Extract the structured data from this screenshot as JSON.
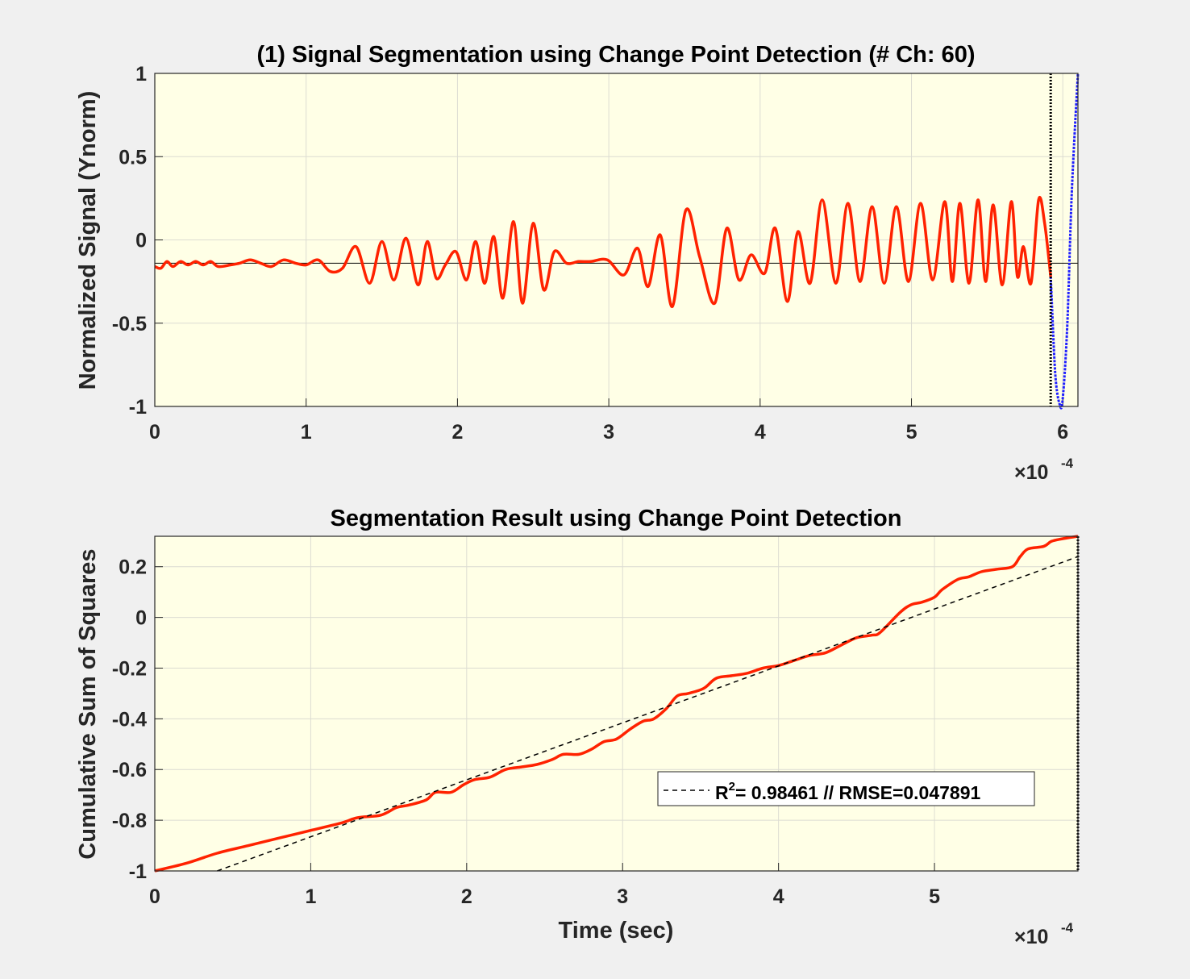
{
  "chart_data": [
    {
      "type": "line",
      "title": "(1) Signal Segmentation using Change Point Detection (# Ch: 60)",
      "xlabel": "",
      "ylabel": "Normalized Signal (Ynorm)",
      "x_exponent_label": "×10",
      "x_exponent": "-4",
      "xlim": [
        0,
        6.1
      ],
      "ylim": [
        -1,
        1
      ],
      "xticks": [
        0,
        1,
        2,
        3,
        4,
        5,
        6
      ],
      "xtick_labels": [
        "0",
        "1",
        "2",
        "3",
        "4",
        "5",
        "6"
      ],
      "yticks": [
        -1,
        -0.5,
        0,
        0.5,
        1
      ],
      "ytick_labels": [
        "-1",
        "-0.5",
        "0",
        "0.5",
        "1"
      ],
      "grid": true,
      "background": "#ffffe6",
      "mean_line": {
        "y": -0.14,
        "color": "#000000"
      },
      "change_point": {
        "x": 5.92,
        "color": "#000000",
        "style": "dotted"
      },
      "series": [
        {
          "color": "#ff2200",
          "x": [
            0.0,
            0.04,
            0.08,
            0.12,
            0.17,
            0.22,
            0.27,
            0.32,
            0.37,
            0.42,
            0.5,
            0.56,
            0.63,
            0.7,
            0.77,
            0.85,
            0.93,
            1.0,
            1.08,
            1.16,
            1.24,
            1.33,
            1.42,
            1.5,
            1.58,
            1.66,
            1.74,
            1.8,
            1.86,
            1.92,
            1.99,
            2.06,
            2.12,
            2.18,
            2.24,
            2.3,
            2.37,
            2.43,
            2.5,
            2.57,
            2.64,
            2.72,
            2.8,
            2.88,
            2.99,
            3.1,
            3.19,
            3.26,
            3.34,
            3.42,
            3.51,
            3.6,
            3.7,
            3.78,
            3.86,
            3.94,
            4.03,
            4.1,
            4.18,
            4.25,
            4.33,
            4.41,
            4.5,
            4.58,
            4.66,
            4.74,
            4.82,
            4.9,
            4.98,
            5.06,
            5.14,
            5.22,
            5.27,
            5.32,
            5.38,
            5.44,
            5.49,
            5.54,
            5.6,
            5.66,
            5.7,
            5.74,
            5.79,
            5.84,
            5.88,
            5.92
          ],
          "y": [
            -0.16,
            -0.17,
            -0.13,
            -0.16,
            -0.13,
            -0.15,
            -0.13,
            -0.15,
            -0.13,
            -0.16,
            -0.15,
            -0.14,
            -0.12,
            -0.14,
            -0.16,
            -0.12,
            -0.14,
            -0.15,
            -0.12,
            -0.19,
            -0.17,
            -0.04,
            -0.26,
            -0.01,
            -0.24,
            0.01,
            -0.27,
            -0.01,
            -0.23,
            -0.15,
            -0.07,
            -0.24,
            -0.01,
            -0.26,
            0.02,
            -0.35,
            0.11,
            -0.38,
            0.1,
            -0.3,
            -0.07,
            -0.14,
            -0.13,
            -0.13,
            -0.12,
            -0.21,
            -0.05,
            -0.28,
            0.03,
            -0.4,
            0.18,
            -0.1,
            -0.38,
            0.07,
            -0.24,
            -0.09,
            -0.2,
            0.07,
            -0.37,
            0.05,
            -0.26,
            0.24,
            -0.26,
            0.22,
            -0.25,
            0.2,
            -0.26,
            0.2,
            -0.25,
            0.22,
            -0.24,
            0.23,
            -0.25,
            0.22,
            -0.26,
            0.24,
            -0.25,
            0.21,
            -0.27,
            0.23,
            -0.22,
            -0.04,
            -0.26,
            0.24,
            0.1,
            -0.22
          ]
        },
        {
          "color": "#1f1fff",
          "x": [
            5.92,
            5.95,
            5.98,
            6.0,
            6.03,
            6.06,
            6.1
          ],
          "y": [
            -0.22,
            -0.8,
            -0.99,
            -0.95,
            -0.5,
            0.3,
            1.0
          ]
        }
      ]
    },
    {
      "type": "line",
      "title": "Segmentation Result using Change Point Detection",
      "xlabel": "Time (sec)",
      "ylabel": "Cumulative Sum of Squares",
      "x_exponent_label": "×10",
      "x_exponent": "-4",
      "xlim": [
        0,
        5.92
      ],
      "ylim": [
        -1,
        0.32
      ],
      "xticks": [
        0,
        1,
        2,
        3,
        4,
        5
      ],
      "xtick_labels": [
        "0",
        "1",
        "2",
        "3",
        "4",
        "5"
      ],
      "yticks": [
        -1,
        -0.8,
        -0.6,
        -0.4,
        -0.2,
        0,
        0.2
      ],
      "ytick_labels": [
        "-1",
        "-0.8",
        "-0.6",
        "-0.4",
        "-0.2",
        "0",
        "0.2"
      ],
      "grid": true,
      "background": "#ffffe6",
      "change_point": {
        "x": 5.92,
        "color": "#000000",
        "style": "dotted"
      },
      "legend": {
        "placement": "lower-right",
        "entries": [
          {
            "style": "dashed",
            "color": "#000000",
            "text_before": "R",
            "sup": "2",
            "text_after": "= 0.98461 // RMSE=0.047891"
          }
        ]
      },
      "series": [
        {
          "color": "#ff2200",
          "x": [
            0.0,
            0.2,
            0.4,
            0.6,
            0.8,
            1.0,
            1.2,
            1.3,
            1.45,
            1.55,
            1.63,
            1.74,
            1.8,
            1.9,
            1.98,
            2.05,
            2.15,
            2.25,
            2.35,
            2.45,
            2.55,
            2.62,
            2.72,
            2.8,
            2.88,
            2.96,
            3.05,
            3.13,
            3.2,
            3.28,
            3.35,
            3.42,
            3.52,
            3.6,
            3.7,
            3.8,
            3.9,
            4.0,
            4.1,
            4.2,
            4.3,
            4.4,
            4.5,
            4.6,
            4.65,
            4.78,
            4.85,
            4.92,
            5.0,
            5.05,
            5.15,
            5.22,
            5.3,
            5.4,
            5.5,
            5.55,
            5.6,
            5.7,
            5.75,
            5.82,
            5.92
          ],
          "y": [
            -1.0,
            -0.97,
            -0.93,
            -0.9,
            -0.87,
            -0.84,
            -0.81,
            -0.79,
            -0.78,
            -0.75,
            -0.74,
            -0.72,
            -0.69,
            -0.69,
            -0.66,
            -0.64,
            -0.63,
            -0.6,
            -0.59,
            -0.58,
            -0.56,
            -0.54,
            -0.54,
            -0.52,
            -0.49,
            -0.48,
            -0.44,
            -0.41,
            -0.4,
            -0.36,
            -0.31,
            -0.3,
            -0.28,
            -0.24,
            -0.23,
            -0.22,
            -0.2,
            -0.19,
            -0.17,
            -0.15,
            -0.14,
            -0.11,
            -0.08,
            -0.07,
            -0.06,
            0.02,
            0.05,
            0.06,
            0.08,
            0.11,
            0.15,
            0.16,
            0.18,
            0.19,
            0.2,
            0.24,
            0.27,
            0.28,
            0.3,
            0.31,
            0.32
          ]
        },
        {
          "color": "#000000",
          "style": "dashed",
          "x": [
            0.4,
            5.92
          ],
          "y": [
            -1.0,
            0.24
          ]
        }
      ]
    }
  ]
}
